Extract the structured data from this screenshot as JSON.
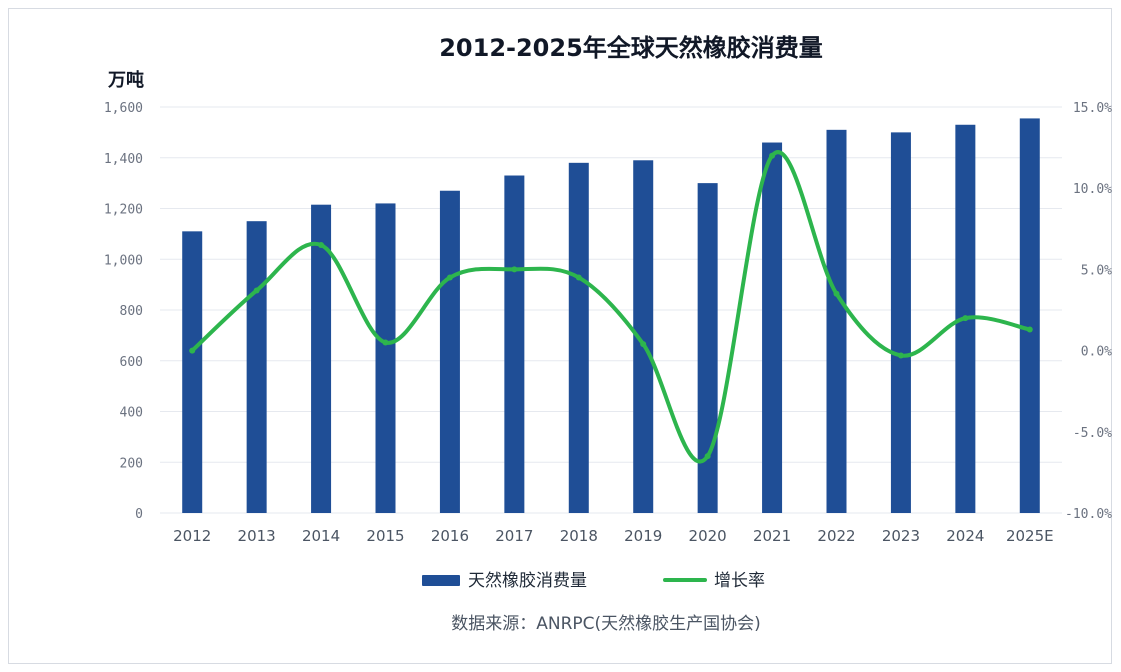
{
  "chart_data": {
    "type": "bar",
    "title": "2012-2025年全球天然橡胶消费量",
    "ylabel": "万吨",
    "categories": [
      "2012",
      "2013",
      "2014",
      "2015",
      "2016",
      "2017",
      "2018",
      "2019",
      "2020",
      "2021",
      "2022",
      "2023",
      "2024",
      "2025E"
    ],
    "y_ticks": [
      "1,600",
      "1,400",
      "1,200",
      "1,000",
      "800",
      "600",
      "400",
      "200",
      "0"
    ],
    "y2_ticks": [
      "15.0%",
      "10.0%",
      "5.0%",
      "0.0%",
      "-5.0%",
      "-10.0%"
    ],
    "ylim": [
      0,
      1600
    ],
    "y2lim": [
      -10,
      15
    ],
    "series": [
      {
        "name": "天然橡胶消费量",
        "type": "bar",
        "color": "#1f4e96",
        "values": [
          1110,
          1150,
          1215,
          1220,
          1270,
          1330,
          1380,
          1390,
          1300,
          1460,
          1510,
          1500,
          1530,
          1555
        ]
      },
      {
        "name": "增长率",
        "type": "line",
        "color": "#2db54d",
        "values": [
          0.0,
          3.7,
          6.5,
          0.5,
          4.5,
          5.0,
          4.5,
          0.4,
          -6.5,
          12.0,
          3.5,
          -0.3,
          2.0,
          1.3
        ]
      }
    ],
    "legend": [
      "天然橡胶消费量",
      "增长率"
    ],
    "legend_position": "bottom",
    "grid": true,
    "source": "数据来源：ANRPC(天然橡胶生产国协会)"
  }
}
